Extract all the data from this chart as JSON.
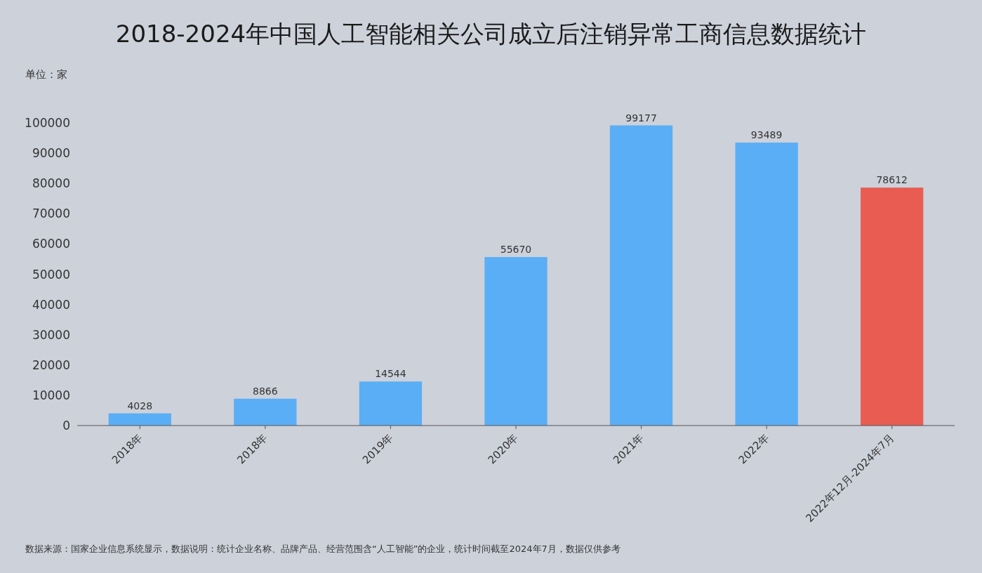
{
  "chart_data": {
    "type": "bar",
    "title": "2018-2024年中国人工智能相关公司成立后注销异常工商信息数据统计",
    "ylabel": "单位：家",
    "categories": [
      "2018年",
      "2018年",
      "2019年",
      "2020年",
      "2021年",
      "2022年",
      "2022年12月-2024年7月"
    ],
    "values": [
      4028,
      8866,
      14544,
      55670,
      99177,
      93489,
      78612
    ],
    "colors": [
      "#5aaef5",
      "#5aaef5",
      "#5aaef5",
      "#5aaef5",
      "#5aaef5",
      "#5aaef5",
      "#e85c52"
    ],
    "ylim": [
      0,
      100000
    ],
    "yticks": [
      0,
      10000,
      20000,
      30000,
      40000,
      50000,
      60000,
      70000,
      80000,
      90000,
      100000
    ],
    "data_labels": true,
    "annotations": [
      "数据来源：国家企业信息系统显示，数据说明：统计企业名称、品牌产品、经营范围含“人工智能”的企业，统计时间截至2024年7月，数据仅供参考"
    ]
  }
}
